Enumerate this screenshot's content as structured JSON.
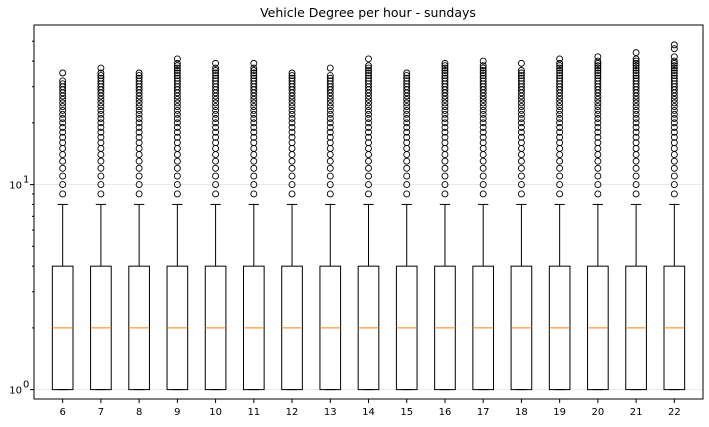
{
  "chart_data": {
    "type": "box",
    "title": "Vehicle Degree per hour - sundays",
    "xlabel": "",
    "ylabel": "",
    "yscale": "log",
    "ylim": [
      0.9,
      60
    ],
    "grid": "horizontal",
    "y_major_ticks": [
      {
        "value": 1,
        "label": "10",
        "exp": "0"
      },
      {
        "value": 10,
        "label": "10",
        "exp": "1"
      }
    ],
    "y_minor_ticks": [
      2,
      3,
      4,
      5,
      6,
      7,
      8,
      9,
      20,
      30,
      40,
      50
    ],
    "categories": [
      "6",
      "7",
      "8",
      "9",
      "10",
      "11",
      "12",
      "13",
      "14",
      "15",
      "16",
      "17",
      "18",
      "19",
      "20",
      "21",
      "22"
    ],
    "boxes": [
      {
        "category": "6",
        "whislo": 1,
        "q1": 1,
        "median": 2,
        "q3": 4,
        "whishi": 8,
        "fliers": [
          9,
          10,
          11,
          12,
          13,
          14,
          15,
          16,
          17,
          18,
          19,
          20,
          21,
          22,
          23,
          24,
          25,
          26,
          27,
          28,
          29,
          30,
          31,
          32,
          35
        ]
      },
      {
        "category": "7",
        "whislo": 1,
        "q1": 1,
        "median": 2,
        "q3": 4,
        "whishi": 8,
        "fliers": [
          9,
          10,
          11,
          12,
          13,
          14,
          15,
          16,
          17,
          18,
          19,
          20,
          21,
          22,
          23,
          24,
          25,
          26,
          27,
          28,
          29,
          30,
          31,
          32,
          33,
          34,
          35,
          37
        ]
      },
      {
        "category": "8",
        "whislo": 1,
        "q1": 1,
        "median": 2,
        "q3": 4,
        "whishi": 8,
        "fliers": [
          9,
          10,
          11,
          12,
          13,
          14,
          15,
          16,
          17,
          18,
          19,
          20,
          21,
          22,
          23,
          24,
          25,
          26,
          27,
          28,
          29,
          30,
          31,
          32,
          33,
          34,
          35
        ]
      },
      {
        "category": "9",
        "whislo": 1,
        "q1": 1,
        "median": 2,
        "q3": 4,
        "whishi": 8,
        "fliers": [
          9,
          10,
          11,
          12,
          13,
          14,
          15,
          16,
          17,
          18,
          19,
          20,
          21,
          22,
          23,
          24,
          25,
          26,
          27,
          28,
          29,
          30,
          31,
          32,
          33,
          34,
          35,
          36,
          37,
          38,
          39,
          41
        ]
      },
      {
        "category": "10",
        "whislo": 1,
        "q1": 1,
        "median": 2,
        "q3": 4,
        "whishi": 8,
        "fliers": [
          9,
          10,
          11,
          12,
          13,
          14,
          15,
          16,
          17,
          18,
          19,
          20,
          21,
          22,
          23,
          24,
          25,
          26,
          27,
          28,
          29,
          30,
          31,
          32,
          33,
          34,
          35,
          36,
          37,
          39
        ]
      },
      {
        "category": "11",
        "whislo": 1,
        "q1": 1,
        "median": 2,
        "q3": 4,
        "whishi": 8,
        "fliers": [
          9,
          10,
          11,
          12,
          13,
          14,
          15,
          16,
          17,
          18,
          19,
          20,
          21,
          22,
          23,
          24,
          25,
          26,
          27,
          28,
          29,
          30,
          31,
          32,
          33,
          34,
          35,
          36,
          37,
          39
        ]
      },
      {
        "category": "12",
        "whislo": 1,
        "q1": 1,
        "median": 2,
        "q3": 4,
        "whishi": 8,
        "fliers": [
          9,
          10,
          11,
          12,
          13,
          14,
          15,
          16,
          17,
          18,
          19,
          20,
          21,
          22,
          23,
          24,
          25,
          26,
          27,
          28,
          29,
          30,
          31,
          32,
          33,
          34,
          35
        ]
      },
      {
        "category": "13",
        "whislo": 1,
        "q1": 1,
        "median": 2,
        "q3": 4,
        "whishi": 8,
        "fliers": [
          9,
          10,
          11,
          12,
          13,
          14,
          15,
          16,
          17,
          18,
          19,
          20,
          21,
          22,
          23,
          24,
          25,
          26,
          27,
          28,
          29,
          30,
          31,
          32,
          33,
          34,
          37
        ]
      },
      {
        "category": "14",
        "whislo": 1,
        "q1": 1,
        "median": 2,
        "q3": 4,
        "whishi": 8,
        "fliers": [
          9,
          10,
          11,
          12,
          13,
          14,
          15,
          16,
          17,
          18,
          19,
          20,
          21,
          22,
          23,
          24,
          25,
          26,
          27,
          28,
          29,
          30,
          31,
          32,
          33,
          34,
          35,
          36,
          37,
          38,
          41
        ]
      },
      {
        "category": "15",
        "whislo": 1,
        "q1": 1,
        "median": 2,
        "q3": 4,
        "whishi": 8,
        "fliers": [
          9,
          10,
          11,
          12,
          13,
          14,
          15,
          16,
          17,
          18,
          19,
          20,
          21,
          22,
          23,
          24,
          25,
          26,
          27,
          28,
          29,
          30,
          31,
          32,
          33,
          34,
          35
        ]
      },
      {
        "category": "16",
        "whislo": 1,
        "q1": 1,
        "median": 2,
        "q3": 4,
        "whishi": 8,
        "fliers": [
          9,
          10,
          11,
          12,
          13,
          14,
          15,
          16,
          17,
          18,
          19,
          20,
          21,
          22,
          23,
          24,
          25,
          26,
          27,
          28,
          29,
          30,
          31,
          32,
          33,
          34,
          35,
          36,
          37,
          38,
          39
        ]
      },
      {
        "category": "17",
        "whislo": 1,
        "q1": 1,
        "median": 2,
        "q3": 4,
        "whishi": 8,
        "fliers": [
          9,
          10,
          11,
          12,
          13,
          14,
          15,
          16,
          17,
          18,
          19,
          20,
          21,
          22,
          23,
          24,
          25,
          26,
          27,
          28,
          29,
          30,
          31,
          32,
          33,
          34,
          35,
          36,
          37,
          38,
          40
        ]
      },
      {
        "category": "18",
        "whislo": 1,
        "q1": 1,
        "median": 2,
        "q3": 4,
        "whishi": 8,
        "fliers": [
          9,
          10,
          11,
          12,
          13,
          14,
          15,
          16,
          17,
          18,
          19,
          20,
          21,
          22,
          23,
          24,
          25,
          26,
          27,
          28,
          29,
          30,
          31,
          32,
          33,
          34,
          35,
          36,
          39
        ]
      },
      {
        "category": "19",
        "whislo": 1,
        "q1": 1,
        "median": 2,
        "q3": 4,
        "whishi": 8,
        "fliers": [
          9,
          10,
          11,
          12,
          13,
          14,
          15,
          16,
          17,
          18,
          19,
          20,
          21,
          22,
          23,
          24,
          25,
          26,
          27,
          28,
          29,
          30,
          31,
          32,
          33,
          34,
          35,
          36,
          37,
          38,
          39,
          41
        ]
      },
      {
        "category": "20",
        "whislo": 1,
        "q1": 1,
        "median": 2,
        "q3": 4,
        "whishi": 8,
        "fliers": [
          9,
          10,
          11,
          12,
          13,
          14,
          15,
          16,
          17,
          18,
          19,
          20,
          21,
          22,
          23,
          24,
          25,
          26,
          27,
          28,
          29,
          30,
          31,
          32,
          33,
          34,
          35,
          36,
          37,
          38,
          39,
          40,
          42
        ]
      },
      {
        "category": "21",
        "whislo": 1,
        "q1": 1,
        "median": 2,
        "q3": 4,
        "whishi": 8,
        "fliers": [
          9,
          10,
          11,
          12,
          13,
          14,
          15,
          16,
          17,
          18,
          19,
          20,
          21,
          22,
          23,
          24,
          25,
          26,
          27,
          28,
          29,
          30,
          31,
          32,
          33,
          34,
          35,
          36,
          37,
          38,
          39,
          40,
          41,
          44
        ]
      },
      {
        "category": "22",
        "whislo": 1,
        "q1": 1,
        "median": 2,
        "q3": 4,
        "whishi": 8,
        "fliers": [
          9,
          10,
          11,
          12,
          13,
          14,
          15,
          16,
          17,
          18,
          19,
          20,
          21,
          22,
          23,
          24,
          25,
          26,
          27,
          28,
          29,
          30,
          31,
          32,
          33,
          34,
          35,
          36,
          37,
          38,
          39,
          40,
          42,
          46,
          48
        ]
      }
    ],
    "colors": {
      "box": "#000000",
      "median": "#ff7f0e",
      "grid": "#e6e6e6"
    }
  }
}
